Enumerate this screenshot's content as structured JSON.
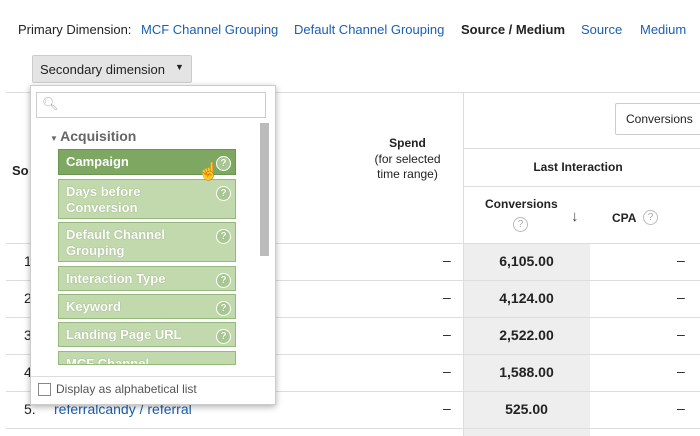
{
  "primary_dimension": {
    "label": "Primary Dimension:",
    "options": [
      "MCF Channel Grouping",
      "Default Channel Grouping",
      "Source / Medium",
      "Source",
      "Medium"
    ]
  },
  "secondary_dimension_button": "Secondary dimension",
  "dropdown": {
    "section": "Acquisition",
    "items": [
      "Campaign",
      "Days before Conversion",
      "Default Channel Grouping",
      "Interaction Type",
      "Keyword",
      "Landing Page URL",
      "MCF Channel"
    ],
    "checkbox_label": "Display as alphabetical list"
  },
  "table": {
    "columns": {
      "source": "So",
      "spend": "Spend",
      "spend_note": "(for selected time range)",
      "group": "Last Interaction",
      "conversions": "Conversions",
      "cpa": "CPA"
    },
    "metric_button": "Conversions",
    "rows": [
      {
        "index": "1",
        "spend": "–",
        "conversions": "6,105.00",
        "cpa": "–"
      },
      {
        "index": "2",
        "spend": "–",
        "conversions": "4,124.00",
        "cpa": "–"
      },
      {
        "index": "3",
        "spend": "–",
        "conversions": "2,522.00",
        "cpa": "–"
      },
      {
        "index": "4",
        "spend": "–",
        "conversions": "1,588.00",
        "cpa": "–"
      },
      {
        "index": "5.",
        "source": "referralcandy / referral",
        "spend": "–",
        "conversions": "525.00",
        "cpa": "–"
      }
    ]
  }
}
